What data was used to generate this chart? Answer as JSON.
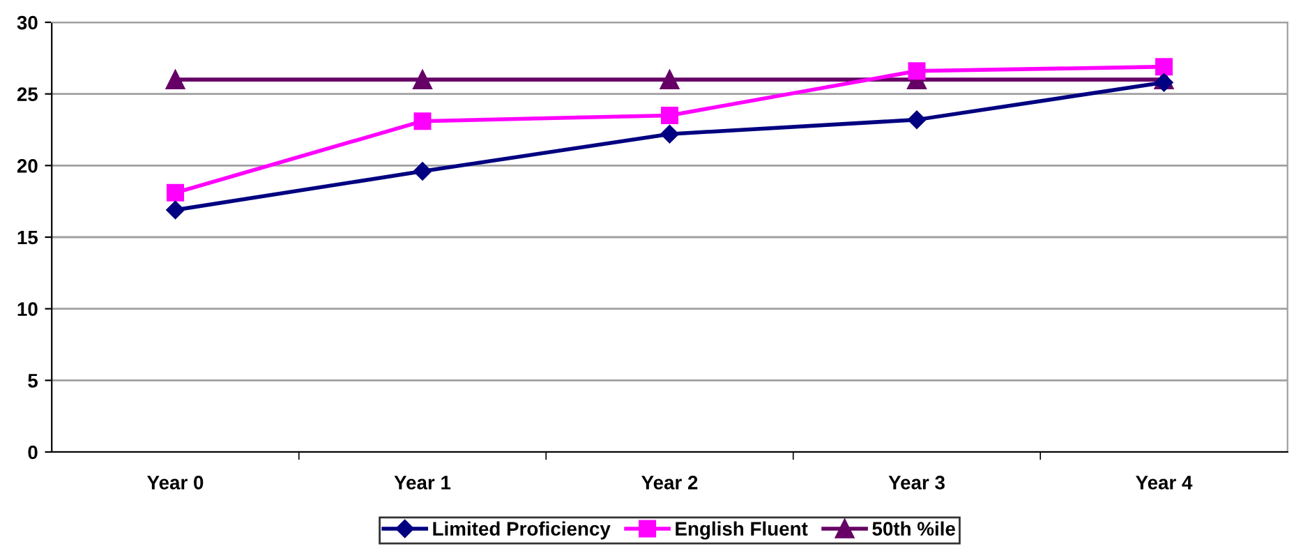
{
  "chart_data": {
    "type": "line",
    "categories": [
      "Year 0",
      "Year 1",
      "Year 2",
      "Year 3",
      "Year 4"
    ],
    "series": [
      {
        "name": "Limited Proficiency",
        "color": "#000080",
        "marker": "diamond",
        "values": [
          16.9,
          19.6,
          22.2,
          23.2,
          25.8
        ]
      },
      {
        "name": "English Fluent",
        "color": "#ff00ff",
        "marker": "square",
        "values": [
          18.1,
          23.1,
          23.5,
          26.6,
          26.9
        ]
      },
      {
        "name": "50th %ile",
        "color": "#660066",
        "marker": "triangle",
        "values": [
          26.0,
          26.0,
          26.0,
          26.0,
          26.0
        ]
      }
    ],
    "ylim": [
      0,
      30
    ],
    "yticks": [
      0,
      5,
      10,
      15,
      20,
      25,
      30
    ],
    "grid": "y",
    "legend": "bottom",
    "line_style": "solid"
  }
}
